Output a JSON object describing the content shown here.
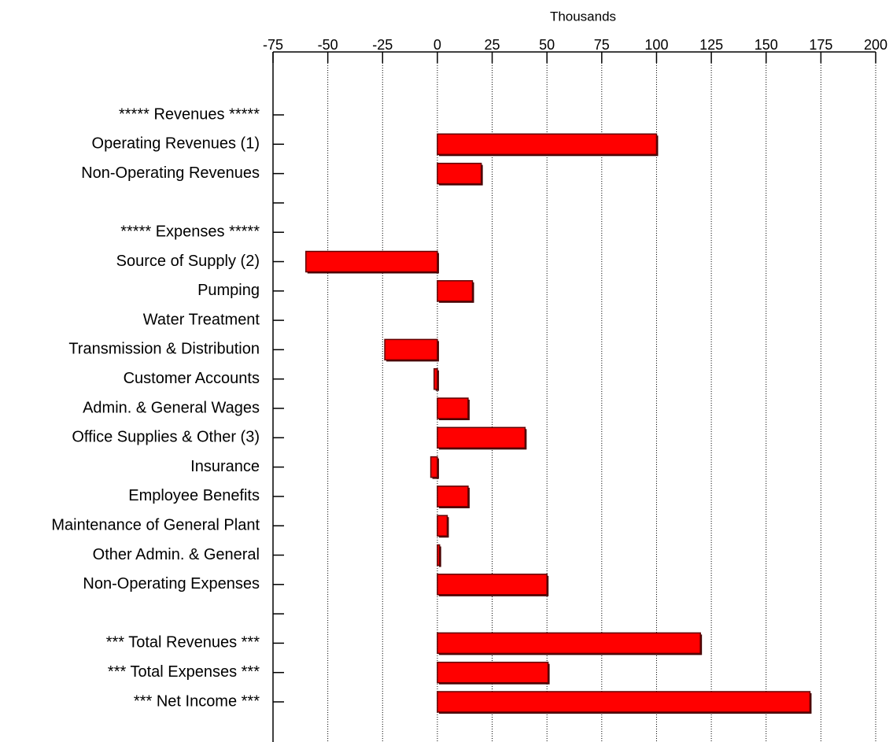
{
  "chart_data": {
    "type": "bar",
    "orientation": "horizontal",
    "x_label": "Thousands",
    "categories": [
      "***** Revenues *****",
      "Operating Revenues (1)",
      "Non-Operating Revenues",
      null,
      "***** Expenses *****",
      "Source of Supply (2)",
      "Pumping",
      "Water Treatment",
      "Transmission & Distribution",
      "Customer Accounts",
      "Admin. & General Wages",
      "Office Supplies & Other (3)",
      "Insurance",
      "Employee Benefits",
      "Maintenance of General Plant",
      "Other Admin. & General",
      "Non-Operating Expenses",
      null,
      "*** Total Revenues ***",
      "*** Total Expenses ***",
      "*** Net Income ***"
    ],
    "values": [
      null,
      100,
      20,
      null,
      null,
      -60,
      16,
      0,
      -24,
      -1.5,
      14,
      40,
      -3,
      14,
      4.5,
      1,
      50,
      null,
      120,
      50.5,
      170
    ],
    "color": "#ff0000",
    "xlim": [
      -75,
      200
    ],
    "xticks": [
      -75,
      -50,
      -25,
      0,
      25,
      50,
      75,
      100,
      125,
      150,
      175,
      200
    ],
    "grid": true
  }
}
